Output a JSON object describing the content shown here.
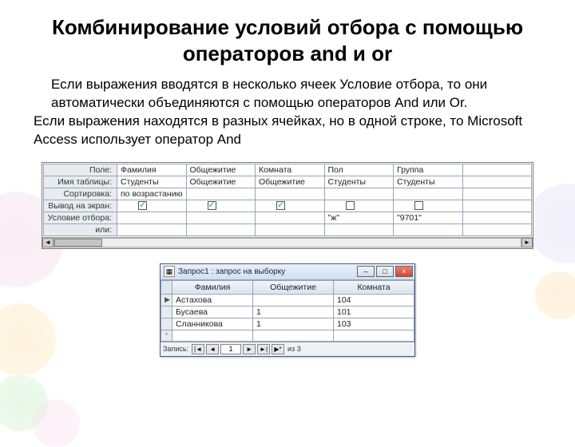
{
  "title": "Комбинирование условий отбора с помощью операторов and и or",
  "para1": "Если выражения вводятся в несколько ячеек Условие отбора, то они автоматически объединяются с помощью операторов And или Or.",
  "para2": "Если выражения находятся в разных ячейках, но в одной строке, то Microsoft Access использует оператор And",
  "design_grid": {
    "row_labels": [
      "Поле:",
      "Имя таблицы:",
      "Сортировка:",
      "Вывод на экран:",
      "Условие отбора:",
      "или:"
    ],
    "columns": [
      {
        "field": "Фамилия",
        "table": "Студенты",
        "sort": "по возрастанию",
        "show": true,
        "criteria": "",
        "or": ""
      },
      {
        "field": "Общежитие",
        "table": "Общежитие",
        "sort": "",
        "show": true,
        "criteria": "",
        "or": ""
      },
      {
        "field": "Комната",
        "table": "Общежитие",
        "sort": "",
        "show": true,
        "criteria": "",
        "or": ""
      },
      {
        "field": "Пол",
        "table": "Студенты",
        "sort": "",
        "show": false,
        "criteria": "\"ж\"",
        "or": ""
      },
      {
        "field": "Группа",
        "table": "Студенты",
        "sort": "",
        "show": false,
        "criteria": "\"9701\"",
        "or": ""
      }
    ],
    "colors": {
      "header_bg": "#e8ecf0",
      "border": "#9aa4b0",
      "cell_bg": "#ffffff"
    }
  },
  "result_window": {
    "title": "Запрос1 : запрос на выборку",
    "columns": [
      "Фамилия",
      "Общежитие",
      "Комната"
    ],
    "rows": [
      {
        "marker": "▶",
        "cells": [
          "Астахова",
          "",
          "104"
        ]
      },
      {
        "marker": "",
        "cells": [
          "Бусаева",
          "1",
          "101"
        ]
      },
      {
        "marker": "",
        "cells": [
          "Сланникова",
          "1",
          "103"
        ]
      }
    ],
    "new_row_marker": "*",
    "nav": {
      "label": "Запись:",
      "current": "1",
      "total": "из 3"
    }
  }
}
